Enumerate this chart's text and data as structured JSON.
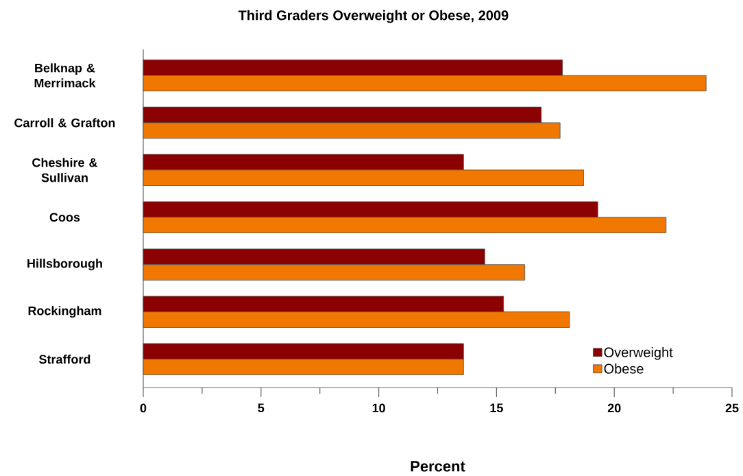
{
  "chart_data": {
    "type": "bar",
    "orientation": "horizontal",
    "title": "Third Graders Overweight or Obese, 2009",
    "xlabel": "Percent",
    "categories": [
      "Belknap & Merrimack",
      "Carroll & Grafton",
      "Cheshire & Sullivan",
      "Coos",
      "Hillsborough",
      "Rockingham",
      "Strafford"
    ],
    "series": [
      {
        "name": "Overweight",
        "color": "#8b0000",
        "values": [
          17.8,
          16.9,
          13.6,
          19.3,
          14.5,
          15.3,
          13.6
        ]
      },
      {
        "name": "Obese",
        "color": "#f07800",
        "values": [
          23.9,
          17.7,
          18.7,
          22.2,
          16.2,
          18.1,
          13.6
        ]
      }
    ],
    "xlim": [
      0,
      25
    ],
    "xticks": [
      0,
      {
        "value": 2.5,
        "label": null
      },
      5,
      {
        "value": 7.5,
        "label": null
      },
      10,
      {
        "value": 12.5,
        "label": null
      },
      15,
      {
        "value": 17.5,
        "label": null
      },
      20,
      {
        "value": 22.5,
        "label": null
      },
      25
    ],
    "legend": "bottom right"
  }
}
